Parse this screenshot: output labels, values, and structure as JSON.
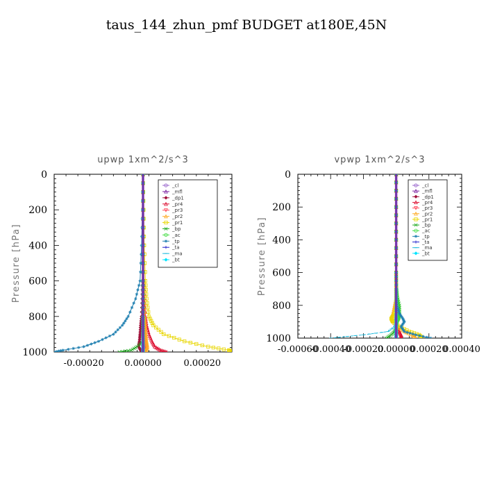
{
  "title": "taus_144_zhun_pmf  BUDGET at180E,45N",
  "legend": [
    {
      "label": "_cl",
      "color": "#9966cc"
    },
    {
      "label": "_mfl",
      "color": "#7a1ea0"
    },
    {
      "label": "_dp1",
      "color": "#a0103a"
    },
    {
      "label": "_pr4",
      "color": "#dd1133"
    },
    {
      "label": "_pr3",
      "color": "#ff4455"
    },
    {
      "label": "_pr2",
      "color": "#ffaa22"
    },
    {
      "label": "_pr1",
      "color": "#e8d600"
    },
    {
      "label": "_bp",
      "color": "#22aa22"
    },
    {
      "label": "_ac",
      "color": "#44dd44"
    },
    {
      "label": "_tp",
      "color": "#1e7fb0"
    },
    {
      "label": "_ta",
      "color": "#2222cc"
    },
    {
      "label": "_ma",
      "color": "#22bbdd"
    },
    {
      "label": "_bt",
      "color": "#00e5ff"
    }
  ],
  "chart_data": [
    {
      "type": "line",
      "title": "upwp   1xm^2/s^3",
      "ylabel": "Pressure [hPa]",
      "xlabel": "",
      "xlim": [
        -0.0003,
        0.0003
      ],
      "ylim": [
        1000,
        0
      ],
      "xticks": [
        -0.0002,
        0.0,
        0.0002
      ],
      "xtick_labels": [
        "-0.00020",
        "0.00000",
        "0.00020"
      ],
      "yticks": [
        0,
        200,
        400,
        600,
        800,
        1000
      ],
      "ytick_labels": [
        "0",
        "200",
        "400",
        "600",
        "800",
        "1000"
      ],
      "legend_position": "top-right",
      "y": [
        0,
        200,
        400,
        600,
        700,
        800,
        850,
        900,
        940,
        970,
        990,
        1000
      ],
      "series": [
        {
          "name": "_cl",
          "values": [
            0,
            0,
            0,
            0,
            0,
            0,
            0,
            0,
            0,
            0,
            0,
            0
          ]
        },
        {
          "name": "_mfl",
          "values": [
            0,
            0,
            0,
            0,
            0,
            0,
            0,
            0,
            0,
            0,
            0,
            0
          ]
        },
        {
          "name": "_dp1",
          "values": [
            0,
            0,
            0,
            -2e-06,
            -3e-06,
            -5e-06,
            -8e-06,
            -1e-05,
            -1.2e-05,
            -1.5e-05,
            -8e-06,
            0
          ]
        },
        {
          "name": "_pr4",
          "values": [
            0,
            0,
            1e-06,
            3e-06,
            5e-06,
            8e-06,
            1.2e-05,
            2e-05,
            3e-05,
            4e-05,
            6e-05,
            8e-05
          ]
        },
        {
          "name": "_pr3",
          "values": [
            0,
            0,
            1e-06,
            2e-06,
            3e-06,
            4e-06,
            5e-06,
            6e-06,
            8e-06,
            1e-05,
            1e-05,
            5e-06
          ]
        },
        {
          "name": "_pr2",
          "values": [
            0,
            0,
            1e-06,
            2e-06,
            3e-06,
            5e-06,
            8e-06,
            1e-05,
            1.2e-05,
            1.5e-05,
            1e-05,
            0
          ]
        },
        {
          "name": "_pr1",
          "values": [
            0,
            2e-06,
            4e-06,
            8e-06,
            1.2e-05,
            2e-05,
            3.5e-05,
            7e-05,
            0.00014,
            0.00022,
            0.00029,
            0.0003
          ]
        },
        {
          "name": "_bp",
          "values": [
            0,
            0,
            0,
            0,
            0,
            0,
            0,
            0,
            0,
            -2e-05,
            -4e-05,
            -8e-05
          ]
        },
        {
          "name": "_ac",
          "values": [
            0,
            0,
            0,
            0,
            0,
            0,
            0,
            0,
            0,
            0,
            0,
            0
          ]
        },
        {
          "name": "_tp",
          "values": [
            0,
            -2e-06,
            -5e-06,
            -1e-05,
            -2.5e-05,
            -5e-05,
            -7e-05,
            -0.0001,
            -0.00015,
            -0.0002,
            -0.00027,
            -0.0003
          ]
        },
        {
          "name": "_ta",
          "values": [
            0,
            0,
            0,
            0,
            0,
            0,
            0,
            0,
            0,
            0,
            0,
            0
          ]
        },
        {
          "name": "_ma",
          "values": [
            0,
            0,
            0,
            0,
            0,
            0,
            0,
            0,
            0,
            0,
            0,
            0
          ]
        },
        {
          "name": "_bt",
          "values": [
            0,
            0,
            0,
            0,
            0,
            0,
            0,
            0,
            0,
            0,
            0,
            0
          ]
        }
      ]
    },
    {
      "type": "line",
      "title": "vpwp   1xm^2/s^3",
      "ylabel": "Pressure [hPa]",
      "xlabel": "",
      "xlim": [
        -0.0006,
        0.0004
      ],
      "ylim": [
        1000,
        0
      ],
      "xticks": [
        -0.0006,
        -0.0004,
        -0.0002,
        0.0,
        0.0002,
        0.0004
      ],
      "xtick_labels": [
        "-0.00060",
        "-0.00040",
        "-0.00020",
        "0.00000",
        "0.00020",
        "0.00040"
      ],
      "yticks": [
        0,
        200,
        400,
        600,
        800,
        1000
      ],
      "ytick_labels": [
        "0",
        "200",
        "400",
        "600",
        "800",
        "1000"
      ],
      "legend_position": "top-right",
      "y": [
        0,
        200,
        400,
        600,
        700,
        750,
        800,
        850,
        880,
        900,
        930,
        960,
        980,
        1000
      ],
      "series": [
        {
          "name": "_cl",
          "values": [
            0,
            0,
            0,
            0,
            0,
            0,
            0,
            0,
            0,
            0,
            0,
            0,
            0,
            0
          ]
        },
        {
          "name": "_mfl",
          "values": [
            0,
            0,
            0,
            0,
            0,
            0,
            0,
            0,
            0,
            0,
            0,
            0,
            0,
            0
          ]
        },
        {
          "name": "_dp1",
          "values": [
            0,
            0,
            0,
            0,
            0,
            0,
            0,
            0,
            0,
            0,
            0,
            0,
            0,
            0
          ]
        },
        {
          "name": "_pr4",
          "values": [
            0,
            0,
            0,
            0,
            0,
            0,
            0,
            0,
            0,
            0,
            1e-05,
            2e-05,
            3e-05,
            3e-05
          ]
        },
        {
          "name": "_pr3",
          "values": [
            0,
            0,
            0,
            0,
            0,
            0,
            0,
            0,
            0,
            0,
            0,
            0,
            0,
            0
          ]
        },
        {
          "name": "_pr2",
          "values": [
            0,
            0,
            0,
            0,
            0,
            0,
            -1e-05,
            -2e-05,
            -3e-05,
            -2e-05,
            1e-05,
            5e-05,
            0.0001,
            0.00012
          ]
        },
        {
          "name": "_pr1",
          "values": [
            0,
            0,
            0,
            0,
            0,
            0,
            0,
            -1e-05,
            -3e-05,
            -2e-05,
            2e-05,
            8e-05,
            0.00014,
            0.00016
          ]
        },
        {
          "name": "_bp",
          "values": [
            0,
            0,
            0,
            0,
            3e-06,
            8e-06,
            2e-05,
            2e-05,
            1.5e-05,
            5e-06,
            0,
            -1e-05,
            -3e-05,
            -6e-05
          ]
        },
        {
          "name": "_ac",
          "values": [
            0,
            0,
            0,
            0,
            2e-06,
            5e-06,
            1.5e-05,
            2e-05,
            1.5e-05,
            5e-06,
            0,
            0,
            0,
            0
          ]
        },
        {
          "name": "_tp",
          "values": [
            0,
            0,
            0,
            0,
            0,
            0,
            5e-06,
            2e-05,
            4e-05,
            5e-05,
            3e-05,
            5e-05,
            0.00012,
            0.00021
          ]
        },
        {
          "name": "_ta",
          "values": [
            0,
            0,
            0,
            0,
            0,
            0,
            0,
            0,
            0,
            0,
            0,
            0,
            0,
            0
          ]
        },
        {
          "name": "_ma",
          "values": [
            0,
            0,
            0,
            0,
            0,
            0,
            0,
            0,
            0,
            0,
            -1e-05,
            -5e-05,
            -0.0002,
            -0.0004
          ]
        },
        {
          "name": "_bt",
          "values": [
            0,
            0,
            0,
            0,
            0,
            0,
            0,
            0,
            0,
            0,
            0,
            0,
            0,
            0
          ]
        }
      ]
    }
  ]
}
